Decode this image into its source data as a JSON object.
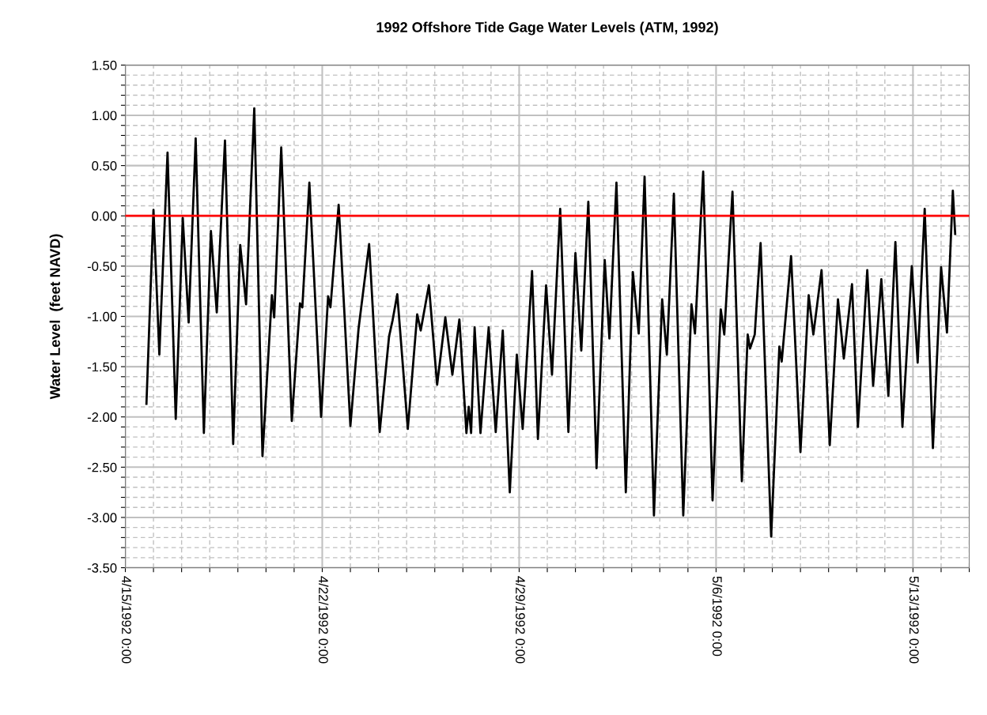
{
  "chart_data": {
    "type": "line",
    "title": "1992 Offshore Tide Gage Water Levels (ATM, 1992)",
    "ylabel": "Water Level  (feet NAVD)",
    "x": [
      "1992-04-15T18:00",
      "1992-04-16T00:00",
      "1992-04-16T05:00",
      "1992-04-16T12:00",
      "1992-04-16T19:00",
      "1992-04-17T01:00",
      "1992-04-17T06:00",
      "1992-04-17T12:00",
      "1992-04-17T19:00",
      "1992-04-18T01:00",
      "1992-04-18T06:00",
      "1992-04-18T13:00",
      "1992-04-18T20:00",
      "1992-04-19T02:00",
      "1992-04-19T07:00",
      "1992-04-19T14:00",
      "1992-04-19T21:00",
      "1992-04-20T05:00",
      "1992-04-20T07:00",
      "1992-04-20T13:00",
      "1992-04-20T22:00",
      "1992-04-21T05:00",
      "1992-04-21T07:00",
      "1992-04-21T13:00",
      "1992-04-21T23:00",
      "1992-04-22T05:00",
      "1992-04-22T07:00",
      "1992-04-22T14:00",
      "1992-04-23T00:00",
      "1992-04-23T07:00",
      "1992-04-23T16:00",
      "1992-04-24T01:00",
      "1992-04-24T09:00",
      "1992-04-24T12:00",
      "1992-04-24T16:00",
      "1992-04-25T01:00",
      "1992-04-25T09:00",
      "1992-04-25T12:00",
      "1992-04-25T19:00",
      "1992-04-26T02:00",
      "1992-04-26T09:00",
      "1992-04-26T15:00",
      "1992-04-26T21:00",
      "1992-04-27T03:00",
      "1992-04-27T05:00",
      "1992-04-27T07:00",
      "1992-04-27T10:00",
      "1992-04-27T15:00",
      "1992-04-27T22:00",
      "1992-04-28T04:00",
      "1992-04-28T10:00",
      "1992-04-28T16:00",
      "1992-04-28T22:00",
      "1992-04-29T03:00",
      "1992-04-29T11:00",
      "1992-04-29T16:00",
      "1992-04-29T23:00",
      "1992-04-30T04:00",
      "1992-04-30T11:00",
      "1992-04-30T18:00",
      "1992-05-01T00:00",
      "1992-05-01T05:00",
      "1992-05-01T11:00",
      "1992-05-01T18:00",
      "1992-05-02T01:00",
      "1992-05-02T05:00",
      "1992-05-02T11:00",
      "1992-05-02T19:00",
      "1992-05-03T01:00",
      "1992-05-03T06:00",
      "1992-05-03T11:00",
      "1992-05-03T19:00",
      "1992-05-04T02:00",
      "1992-05-04T06:00",
      "1992-05-04T12:00",
      "1992-05-04T20:00",
      "1992-05-05T03:00",
      "1992-05-05T06:00",
      "1992-05-05T13:00",
      "1992-05-05T21:00",
      "1992-05-06T04:00",
      "1992-05-06T07:00",
      "1992-05-06T14:00",
      "1992-05-06T22:00",
      "1992-05-07T03:00",
      "1992-05-07T05:00",
      "1992-05-07T09:00",
      "1992-05-07T14:00",
      "1992-05-07T23:00",
      "1992-05-08T06:00",
      "1992-05-08T08:00",
      "1992-05-08T16:00",
      "1992-05-09T00:00",
      "1992-05-09T07:00",
      "1992-05-09T11:00",
      "1992-05-09T18:00",
      "1992-05-10T01:00",
      "1992-05-10T08:00",
      "1992-05-10T13:00",
      "1992-05-10T20:00",
      "1992-05-11T01:00",
      "1992-05-11T09:00",
      "1992-05-11T14:00",
      "1992-05-11T21:00",
      "1992-05-12T03:00",
      "1992-05-12T09:00",
      "1992-05-12T15:00",
      "1992-05-12T23:00",
      "1992-05-13T04:00",
      "1992-05-13T10:00",
      "1992-05-13T17:00",
      "1992-05-14T00:00",
      "1992-05-14T05:00",
      "1992-05-14T10:00",
      "1992-05-14T12:00"
    ],
    "series": [
      {
        "color": "#000000",
        "values": [
          -1.87,
          0.06,
          -1.38,
          0.63,
          -2.02,
          -0.02,
          -1.06,
          0.77,
          -2.16,
          -0.15,
          -0.96,
          0.75,
          -2.27,
          -0.29,
          -0.88,
          1.07,
          -2.39,
          -0.79,
          -1.01,
          0.68,
          -2.04,
          -0.87,
          -0.91,
          0.33,
          -2.0,
          -0.8,
          -0.91,
          0.11,
          -2.09,
          -1.12,
          -0.28,
          -2.15,
          -1.2,
          -1.04,
          -0.78,
          -2.12,
          -0.98,
          -1.14,
          -0.69,
          -1.68,
          -1.01,
          -1.58,
          -1.03,
          -2.16,
          -1.9,
          -2.16,
          -1.11,
          -2.16,
          -1.11,
          -2.15,
          -1.14,
          -2.75,
          -1.38,
          -2.12,
          -0.55,
          -2.22,
          -0.69,
          -1.58,
          0.07,
          -2.15,
          -0.37,
          -1.34,
          0.14,
          -2.51,
          -0.44,
          -1.22,
          0.33,
          -2.75,
          -0.56,
          -1.17,
          0.39,
          -2.98,
          -0.83,
          -1.38,
          0.22,
          -2.98,
          -0.88,
          -1.17,
          0.44,
          -2.83,
          -0.93,
          -1.18,
          0.24,
          -2.64,
          -1.18,
          -1.32,
          -1.18,
          -0.27,
          -3.19,
          -1.3,
          -1.45,
          -0.4,
          -2.35,
          -0.79,
          -1.18,
          -0.54,
          -2.28,
          -0.83,
          -1.42,
          -0.68,
          -2.1,
          -0.54,
          -1.69,
          -0.63,
          -1.79,
          -0.26,
          -2.1,
          -0.5,
          -1.46,
          0.07,
          -2.31,
          -0.51,
          -1.16,
          0.25,
          -0.18
        ]
      }
    ],
    "xlim": [
      "1992-04-15",
      "1992-05-15"
    ],
    "xticks": [
      {
        "value": "1992-04-15",
        "label": "4/15/1992 0:00"
      },
      {
        "value": "1992-04-16",
        "label": null
      },
      {
        "value": "1992-04-17",
        "label": null
      },
      {
        "value": "1992-04-18",
        "label": null
      },
      {
        "value": "1992-04-19",
        "label": null
      },
      {
        "value": "1992-04-20",
        "label": null
      },
      {
        "value": "1992-04-21",
        "label": null
      },
      {
        "value": "1992-04-22",
        "label": "4/22/1992 0:00"
      },
      {
        "value": "1992-04-23",
        "label": null
      },
      {
        "value": "1992-04-24",
        "label": null
      },
      {
        "value": "1992-04-25",
        "label": null
      },
      {
        "value": "1992-04-26",
        "label": null
      },
      {
        "value": "1992-04-27",
        "label": null
      },
      {
        "value": "1992-04-28",
        "label": null
      },
      {
        "value": "1992-04-29",
        "label": "4/29/1992 0:00"
      },
      {
        "value": "1992-04-30",
        "label": null
      },
      {
        "value": "1992-05-01",
        "label": null
      },
      {
        "value": "1992-05-02",
        "label": null
      },
      {
        "value": "1992-05-03",
        "label": null
      },
      {
        "value": "1992-05-04",
        "label": null
      },
      {
        "value": "1992-05-05",
        "label": null
      },
      {
        "value": "1992-05-06",
        "label": "5/6/1992 0:00"
      },
      {
        "value": "1992-05-07",
        "label": null
      },
      {
        "value": "1992-05-08",
        "label": null
      },
      {
        "value": "1992-05-09",
        "label": null
      },
      {
        "value": "1992-05-10",
        "label": null
      },
      {
        "value": "1992-05-11",
        "label": null
      },
      {
        "value": "1992-05-12",
        "label": null
      },
      {
        "value": "1992-05-13",
        "label": "5/13/1992 0:00"
      },
      {
        "value": "1992-05-14",
        "label": null
      },
      {
        "value": "1992-05-15",
        "label": null
      }
    ],
    "ylim": [
      -3.5,
      1.5
    ],
    "yticks": [
      {
        "value": -3.5,
        "label": "-3.50"
      },
      {
        "value": -3.4,
        "label": null
      },
      {
        "value": -3.3,
        "label": null
      },
      {
        "value": -3.2,
        "label": null
      },
      {
        "value": -3.1,
        "label": null
      },
      {
        "value": -3.0,
        "label": "-3.00"
      },
      {
        "value": -2.9,
        "label": null
      },
      {
        "value": -2.8,
        "label": null
      },
      {
        "value": -2.7,
        "label": null
      },
      {
        "value": -2.6,
        "label": null
      },
      {
        "value": -2.5,
        "label": "-2.50"
      },
      {
        "value": -2.4,
        "label": null
      },
      {
        "value": -2.3,
        "label": null
      },
      {
        "value": -2.2,
        "label": null
      },
      {
        "value": -2.1,
        "label": null
      },
      {
        "value": -2.0,
        "label": "-2.00"
      },
      {
        "value": -1.9,
        "label": null
      },
      {
        "value": -1.8,
        "label": null
      },
      {
        "value": -1.7,
        "label": null
      },
      {
        "value": -1.6,
        "label": null
      },
      {
        "value": -1.5,
        "label": "-1.50"
      },
      {
        "value": -1.4,
        "label": null
      },
      {
        "value": -1.3,
        "label": null
      },
      {
        "value": -1.2,
        "label": null
      },
      {
        "value": -1.1,
        "label": null
      },
      {
        "value": -1.0,
        "label": "-1.00"
      },
      {
        "value": -0.9,
        "label": null
      },
      {
        "value": -0.8,
        "label": null
      },
      {
        "value": -0.7,
        "label": null
      },
      {
        "value": -0.6,
        "label": null
      },
      {
        "value": -0.5,
        "label": "-0.50"
      },
      {
        "value": -0.4,
        "label": null
      },
      {
        "value": -0.3,
        "label": null
      },
      {
        "value": -0.2,
        "label": null
      },
      {
        "value": -0.1,
        "label": null
      },
      {
        "value": 0.0,
        "label": "0.00"
      },
      {
        "value": 0.1,
        "label": null
      },
      {
        "value": 0.2,
        "label": null
      },
      {
        "value": 0.3,
        "label": null
      },
      {
        "value": 0.4,
        "label": null
      },
      {
        "value": 0.5,
        "label": "0.50"
      },
      {
        "value": 0.6,
        "label": null
      },
      {
        "value": 0.7,
        "label": null
      },
      {
        "value": 0.8,
        "label": null
      },
      {
        "value": 0.9,
        "label": null
      },
      {
        "value": 1.0,
        "label": "1.00"
      },
      {
        "value": 1.1,
        "label": null
      },
      {
        "value": 1.2,
        "label": null
      },
      {
        "value": 1.3,
        "label": null
      },
      {
        "value": 1.4,
        "label": null
      },
      {
        "value": 1.5,
        "label": "1.50"
      }
    ],
    "ref_lines": [
      {
        "axis": "y",
        "value": 0,
        "color": "#ff0000",
        "line_style": "solid"
      }
    ],
    "grid": true,
    "legend": false,
    "marker": "none",
    "line_style": "solid"
  }
}
